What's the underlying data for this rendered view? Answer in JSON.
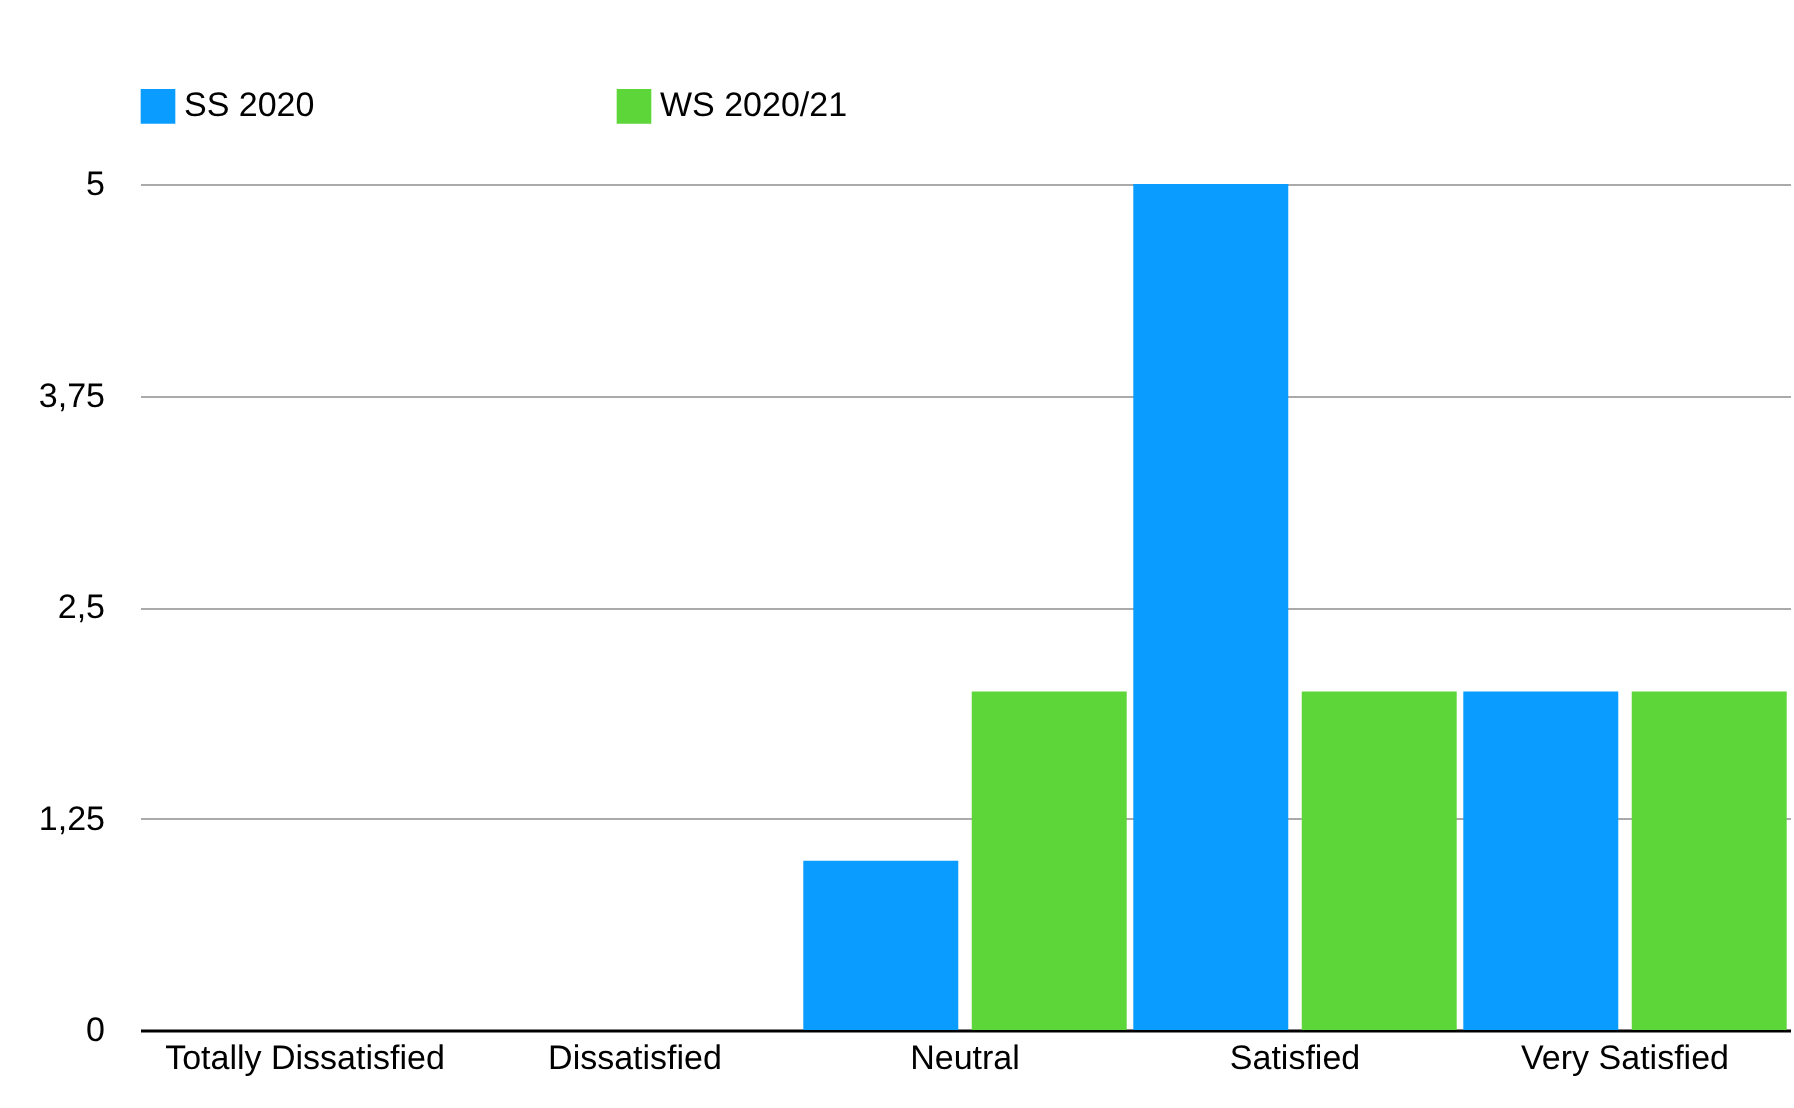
{
  "chart_data": {
    "type": "bar",
    "categories": [
      "Totally Dissatisfied",
      "Dissatisfied",
      "Neutral",
      "Satisfied",
      "Very Satisfied"
    ],
    "series": [
      {
        "name": "SS 2020",
        "color": "#0a9dff",
        "values": [
          0,
          0,
          1,
          5,
          2
        ]
      },
      {
        "name": "WS 2020/21",
        "color": "#5dd63a",
        "values": [
          0,
          0,
          2,
          2,
          2
        ]
      }
    ],
    "ylim": [
      0,
      5
    ],
    "yticks": [
      0,
      {
        "value": 1.25,
        "label": "1,25"
      },
      {
        "value": 2.5,
        "label": "2,5"
      },
      {
        "value": 3.75,
        "label": "3,75"
      },
      5
    ],
    "grid": "y",
    "legend": "top"
  }
}
